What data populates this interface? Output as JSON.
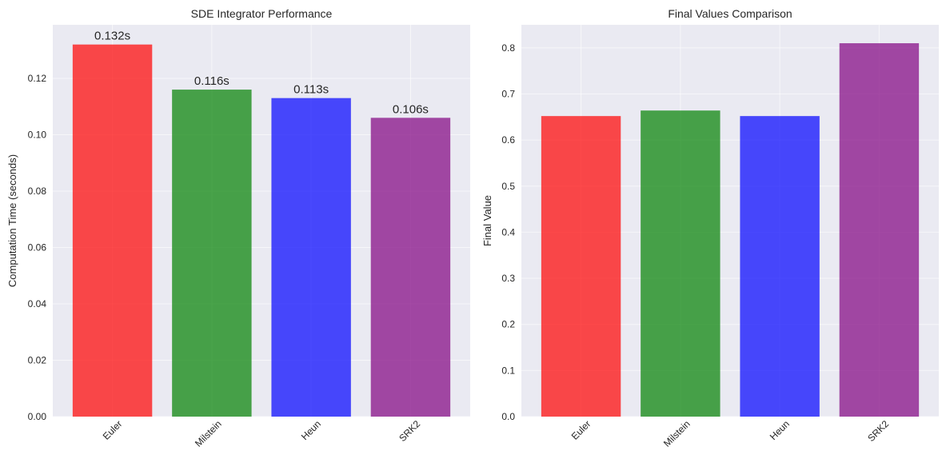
{
  "chart_data": [
    {
      "type": "bar",
      "title": "SDE Integrator Performance",
      "xlabel": "",
      "ylabel": "Computation Time (seconds)",
      "categories": [
        "Euler",
        "Milstein",
        "Heun",
        "SRK2"
      ],
      "values": [
        0.132,
        0.116,
        0.113,
        0.106
      ],
      "value_labels": [
        "0.132s",
        "0.116s",
        "0.113s",
        "0.106s"
      ],
      "colors": [
        "#ff0000",
        "#008000",
        "#0000ff",
        "#800080"
      ],
      "ylim": [
        0,
        0.139
      ],
      "yticks": [
        0.0,
        0.02,
        0.04,
        0.06,
        0.08,
        0.1,
        0.12
      ],
      "ytick_labels": [
        "0.00",
        "0.02",
        "0.04",
        "0.06",
        "0.08",
        "0.10",
        "0.12"
      ],
      "grid": true
    },
    {
      "type": "bar",
      "title": "Final Values Comparison",
      "xlabel": "",
      "ylabel": "Final Value",
      "categories": [
        "Euler",
        "Milstein",
        "Heun",
        "SRK2"
      ],
      "values": [
        0.652,
        0.664,
        0.652,
        0.81
      ],
      "colors": [
        "#ff0000",
        "#008000",
        "#0000ff",
        "#800080"
      ],
      "ylim": [
        0,
        0.85
      ],
      "yticks": [
        0.0,
        0.1,
        0.2,
        0.3,
        0.4,
        0.5,
        0.6,
        0.7,
        0.8
      ],
      "ytick_labels": [
        "0.0",
        "0.1",
        "0.2",
        "0.3",
        "0.4",
        "0.5",
        "0.6",
        "0.7",
        "0.8"
      ],
      "grid": true
    }
  ],
  "style": {
    "plot_background": "#eaeaf2",
    "grid_color": "#ffffff",
    "bar_opacity": 0.7
  }
}
